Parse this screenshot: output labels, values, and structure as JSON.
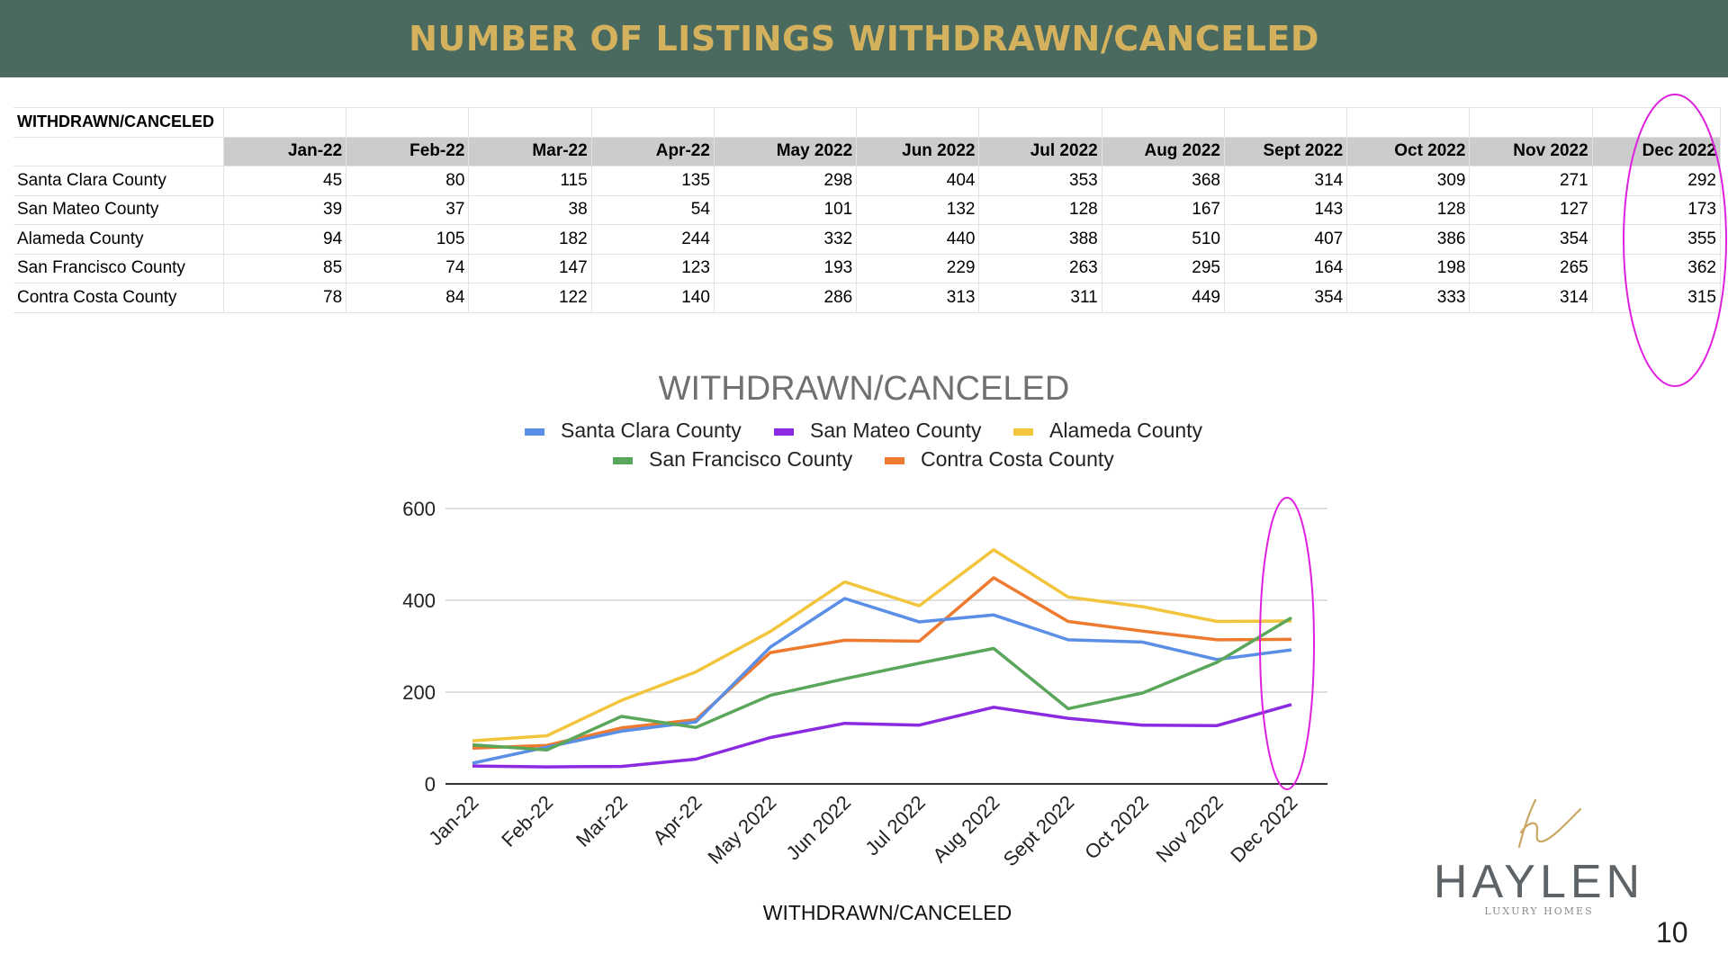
{
  "header": {
    "title": "NUMBER OF LISTINGS WITHDRAWN/CANCELED"
  },
  "table": {
    "title": "WITHDRAWN/CANCELED",
    "columns": [
      "Jan-22",
      "Feb-22",
      "Mar-22",
      "Apr-22",
      "May 2022",
      "Jun 2022",
      "Jul 2022",
      "Aug 2022",
      "Sept 2022",
      "Oct 2022",
      "Nov 2022",
      "Dec 2022"
    ],
    "rows": [
      {
        "county": "Santa Clara County",
        "values": [
          45,
          80,
          115,
          135,
          298,
          404,
          353,
          368,
          314,
          309,
          271,
          292
        ]
      },
      {
        "county": "San Mateo County",
        "values": [
          39,
          37,
          38,
          54,
          101,
          132,
          128,
          167,
          143,
          128,
          127,
          173
        ]
      },
      {
        "county": "Alameda County",
        "values": [
          94,
          105,
          182,
          244,
          332,
          440,
          388,
          510,
          407,
          386,
          354,
          355
        ]
      },
      {
        "county": "San Francisco County",
        "values": [
          85,
          74,
          147,
          123,
          193,
          229,
          263,
          295,
          164,
          198,
          265,
          362
        ]
      },
      {
        "county": "Contra Costa County",
        "values": [
          78,
          84,
          122,
          140,
          286,
          313,
          311,
          449,
          354,
          333,
          314,
          315
        ]
      }
    ]
  },
  "chart_data": {
    "type": "line",
    "title": "WITHDRAWN/CANCELED",
    "xlabel": "WITHDRAWN/CANCELED",
    "ylabel": "",
    "ylim": [
      0,
      600
    ],
    "yticks": [
      0,
      200,
      400,
      600
    ],
    "grid": true,
    "legend_position": "top",
    "categories": [
      "Jan-22",
      "Feb-22",
      "Mar-22",
      "Apr-22",
      "May 2022",
      "Jun 2022",
      "Jul 2022",
      "Aug 2022",
      "Sept 2022",
      "Oct 2022",
      "Nov 2022",
      "Dec 2022"
    ],
    "series": [
      {
        "name": "Santa Clara County",
        "color": "#5b8ee6",
        "values": [
          45,
          80,
          115,
          135,
          298,
          404,
          353,
          368,
          314,
          309,
          271,
          292
        ]
      },
      {
        "name": "San Mateo County",
        "color": "#8a2be2",
        "values": [
          39,
          37,
          38,
          54,
          101,
          132,
          128,
          167,
          143,
          128,
          127,
          173
        ]
      },
      {
        "name": "Alameda County",
        "color": "#f2c53d",
        "values": [
          94,
          105,
          182,
          244,
          332,
          440,
          388,
          510,
          407,
          386,
          354,
          355
        ]
      },
      {
        "name": "San Francisco County",
        "color": "#5aa65a",
        "values": [
          85,
          74,
          147,
          123,
          193,
          229,
          263,
          295,
          164,
          198,
          265,
          362
        ]
      },
      {
        "name": "Contra Costa County",
        "color": "#ee7a30",
        "values": [
          78,
          84,
          122,
          140,
          286,
          313,
          311,
          449,
          354,
          333,
          314,
          315
        ]
      }
    ]
  },
  "colors": {
    "header_bg": "#4a6a60",
    "header_text": "#d4b15c",
    "highlight": "#e020e0"
  },
  "logo": {
    "name": "HAYLEN",
    "subtitle": "LUXURY HOMES"
  },
  "page_number": "10"
}
